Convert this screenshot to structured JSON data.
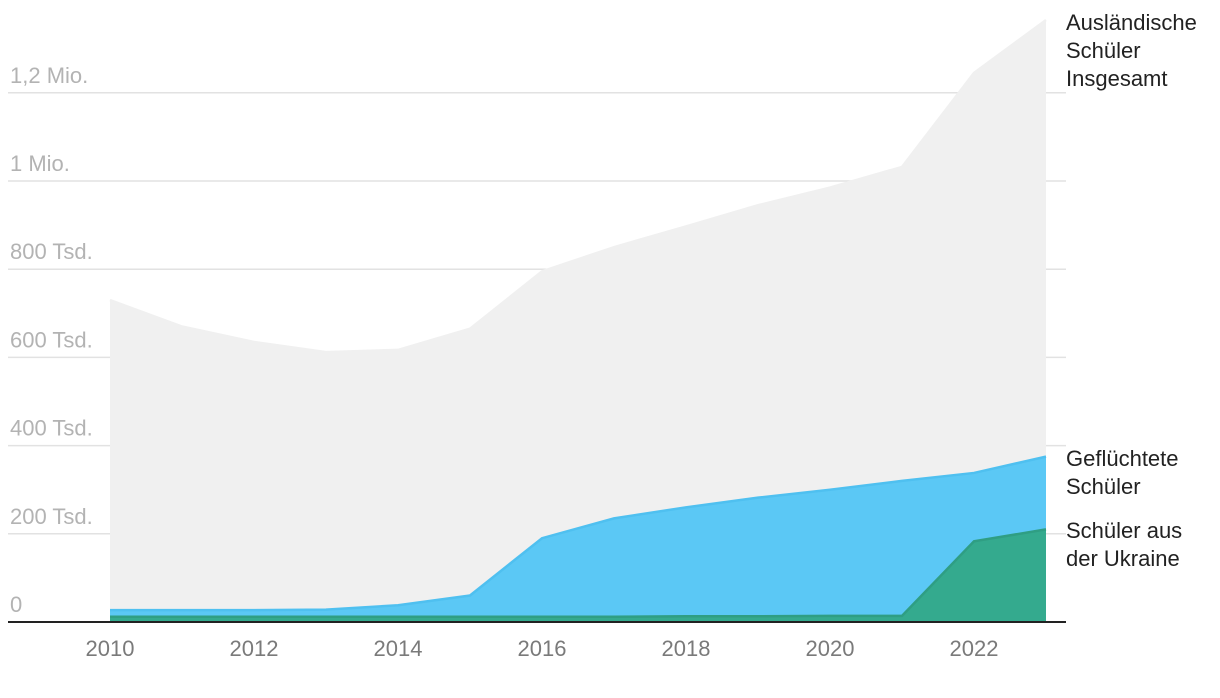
{
  "chart_data": {
    "type": "area",
    "x": [
      2010,
      2011,
      2012,
      2013,
      2014,
      2015,
      2016,
      2017,
      2018,
      2019,
      2020,
      2021,
      2022,
      2023
    ],
    "ylim": [
      0,
      1350000
    ],
    "yticks": [
      {
        "value": 0,
        "label": "0"
      },
      {
        "value": 200000,
        "label": "200 Tsd."
      },
      {
        "value": 400000,
        "label": "400 Tsd."
      },
      {
        "value": 600000,
        "label": "600 Tsd."
      },
      {
        "value": 800000,
        "label": "800 Tsd."
      },
      {
        "value": 1000000,
        "label": "1 Mio."
      },
      {
        "value": 1200000,
        "label": "1,2 Mio."
      }
    ],
    "xticks": [
      {
        "value": 2010,
        "label": "2010"
      },
      {
        "value": 2012,
        "label": "2012"
      },
      {
        "value": 2014,
        "label": "2014"
      },
      {
        "value": 2016,
        "label": "2016"
      },
      {
        "value": 2018,
        "label": "2018"
      },
      {
        "value": 2020,
        "label": "2020"
      },
      {
        "value": 2022,
        "label": "2022"
      }
    ],
    "grid": true,
    "overlapping": true,
    "series": [
      {
        "label_lines": [
          "Ausländische",
          "Schüler",
          "Insgesamt"
        ],
        "color": "#f0f0f0",
        "line_color": "#f0f0f0",
        "values": [
          730000,
          670000,
          635000,
          612000,
          617000,
          665000,
          795000,
          850000,
          897000,
          945000,
          985000,
          1032000,
          1245000,
          1365000
        ]
      },
      {
        "label_lines": [
          "Geflüchtete",
          "Schüler"
        ],
        "color": "#5bc8f5",
        "line_color": "#4fc0f0",
        "values": [
          27000,
          27000,
          27000,
          28000,
          38000,
          60000,
          190000,
          235000,
          260000,
          282000,
          300000,
          320000,
          338000,
          375000
        ]
      },
      {
        "label_lines": [
          "Schüler aus",
          "der Ukraine"
        ],
        "color": "#34aa8e",
        "line_color": "#2f9e83",
        "values": [
          12000,
          12000,
          12000,
          12000,
          12000,
          12000,
          12000,
          12000,
          13000,
          13000,
          14000,
          14000,
          183000,
          210000
        ]
      }
    ]
  }
}
